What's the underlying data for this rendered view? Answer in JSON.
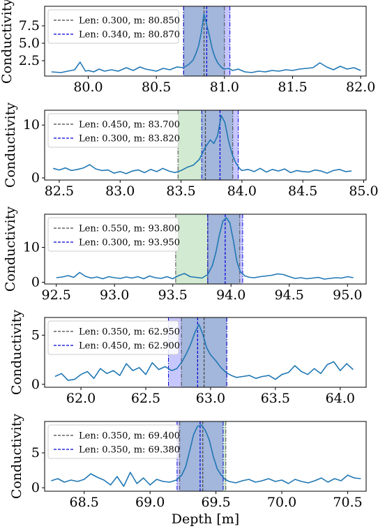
{
  "figure": {
    "xlabel": "Depth [m]"
  },
  "chart_data": [
    {
      "type": "line",
      "ylabel": "Conductivity",
      "xlim": [
        79.68,
        82.04
      ],
      "ylim": [
        0.3,
        10.3
      ],
      "xticks": [
        "80.0",
        "80.5",
        "81.0",
        "81.5",
        "82.0"
      ],
      "yticks": [
        "2.5",
        "5.0",
        "7.5"
      ],
      "legend_position": "upper-left",
      "windows": [
        {
          "label": "Len: 0.300, m:  80.850",
          "color": "#2ca02c",
          "line_color": "#444444",
          "center": 80.85,
          "length": 0.3
        },
        {
          "label": "Len: 0.340, m:  80.870",
          "color": "#0000ff",
          "line_color": "#0000dd",
          "center": 80.87,
          "length": 0.34
        }
      ],
      "series": [
        {
          "x": [
            79.73,
            79.8,
            79.85,
            79.9,
            79.94,
            79.98,
            80.0,
            80.04,
            80.08,
            80.12,
            80.17,
            80.22,
            80.28,
            80.33,
            80.38,
            80.42,
            80.45,
            80.5,
            80.55,
            80.6,
            80.65,
            80.7,
            80.74,
            80.77,
            80.79,
            80.81,
            80.83,
            80.85,
            80.87,
            80.89,
            80.91,
            80.93,
            80.95,
            80.98,
            81.0,
            81.03,
            81.06,
            81.1,
            81.15,
            81.2,
            81.25,
            81.3,
            81.35,
            81.4,
            81.45,
            81.5,
            81.55,
            81.6,
            81.65,
            81.7,
            81.75,
            81.8,
            81.85,
            81.9,
            81.95,
            82.0
          ],
          "y": [
            0.9,
            0.8,
            1.0,
            1.2,
            2.3,
            1.0,
            1.1,
            0.9,
            1.3,
            1.0,
            1.2,
            1.0,
            1.5,
            1.1,
            1.6,
            1.3,
            1.2,
            1.0,
            1.4,
            1.2,
            1.6,
            1.5,
            2.0,
            2.6,
            3.5,
            4.6,
            6.5,
            9.2,
            7.6,
            6.0,
            4.2,
            3.0,
            2.2,
            1.5,
            1.3,
            1.4,
            1.1,
            1.3,
            0.9,
            0.8,
            1.0,
            0.9,
            1.1,
            1.0,
            1.2,
            1.1,
            1.3,
            1.4,
            1.5,
            2.2,
            1.6,
            1.2,
            1.7,
            1.3,
            1.5,
            1.1
          ]
        }
      ]
    },
    {
      "type": "line",
      "ylabel": "Conductivity",
      "xlim": [
        82.38,
        85.02
      ],
      "ylim": [
        -0.4,
        12.8
      ],
      "xticks": [
        "82.5",
        "83.0",
        "83.5",
        "84.0",
        "84.5",
        "85.0"
      ],
      "yticks": [
        "0",
        "10"
      ],
      "legend_position": "upper-left",
      "windows": [
        {
          "label": "Len: 0.450, m:  83.700",
          "color": "#2ca02c",
          "line_color": "#444444",
          "center": 83.7,
          "length": 0.45
        },
        {
          "label": "Len: 0.300, m:  83.820",
          "color": "#0000ff",
          "line_color": "#0000dd",
          "center": 83.82,
          "length": 0.3
        }
      ],
      "series": [
        {
          "x": [
            82.45,
            82.5,
            82.55,
            82.6,
            82.65,
            82.7,
            82.75,
            82.8,
            82.85,
            82.9,
            82.95,
            83.0,
            83.05,
            83.1,
            83.15,
            83.2,
            83.25,
            83.3,
            83.35,
            83.4,
            83.45,
            83.5,
            83.55,
            83.6,
            83.65,
            83.7,
            83.74,
            83.77,
            83.8,
            83.83,
            83.86,
            83.89,
            83.92,
            83.95,
            83.98,
            84.0,
            84.05,
            84.1,
            84.15,
            84.2,
            84.25,
            84.3,
            84.35,
            84.4,
            84.45,
            84.5,
            84.55,
            84.6,
            84.65,
            84.7,
            84.75,
            84.8,
            84.85,
            84.9
          ],
          "y": [
            1.8,
            1.5,
            1.9,
            1.4,
            1.6,
            1.9,
            2.5,
            1.7,
            1.4,
            1.5,
            0.9,
            1.2,
            0.8,
            1.3,
            1.5,
            1.0,
            1.6,
            1.2,
            1.8,
            1.3,
            1.0,
            1.4,
            2.0,
            2.4,
            3.5,
            5.8,
            7.2,
            6.5,
            8.0,
            11.8,
            10.5,
            7.0,
            4.5,
            2.8,
            1.8,
            1.4,
            1.6,
            1.2,
            1.8,
            1.1,
            1.6,
            1.3,
            1.7,
            1.0,
            1.4,
            1.2,
            1.1,
            1.5,
            1.3,
            0.9,
            1.4,
            1.6,
            1.2,
            1.3
          ]
        }
      ]
    },
    {
      "type": "line",
      "ylabel": "Conductivity",
      "xlim": [
        92.4,
        95.16
      ],
      "ylim": [
        -0.5,
        19.5
      ],
      "xticks": [
        "92.5",
        "93.0",
        "93.5",
        "94.0",
        "94.5",
        "95.0"
      ],
      "yticks": [
        "0",
        "10"
      ],
      "legend_position": "upper-left",
      "windows": [
        {
          "label": "Len: 0.550, m:  93.800",
          "color": "#2ca02c",
          "line_color": "#444444",
          "center": 93.8,
          "length": 0.55
        },
        {
          "label": "Len: 0.300, m:  93.950",
          "color": "#0000ff",
          "line_color": "#0000dd",
          "center": 93.95,
          "length": 0.3
        }
      ],
      "series": [
        {
          "x": [
            92.5,
            92.55,
            92.6,
            92.65,
            92.7,
            92.75,
            92.8,
            92.85,
            92.9,
            92.95,
            93.0,
            93.05,
            93.1,
            93.15,
            93.2,
            93.25,
            93.3,
            93.35,
            93.4,
            93.45,
            93.5,
            93.55,
            93.6,
            93.65,
            93.7,
            93.75,
            93.8,
            93.84,
            93.87,
            93.9,
            93.93,
            93.96,
            93.99,
            94.02,
            94.05,
            94.08,
            94.12,
            94.16,
            94.2,
            94.25,
            94.3,
            94.35,
            94.4,
            94.45,
            94.5,
            94.55,
            94.6,
            94.65,
            94.7,
            94.75,
            94.8,
            94.85,
            94.9,
            94.95,
            95.0,
            95.05
          ],
          "y": [
            1.3,
            1.5,
            1.9,
            1.4,
            2.8,
            1.7,
            1.2,
            1.5,
            1.0,
            1.6,
            1.3,
            1.1,
            1.5,
            1.2,
            1.6,
            1.0,
            1.8,
            1.3,
            1.1,
            1.6,
            1.0,
            1.9,
            2.5,
            1.6,
            1.4,
            1.2,
            2.2,
            4.8,
            8.5,
            13.5,
            17.5,
            18.5,
            17.0,
            12.0,
            6.0,
            3.0,
            1.8,
            1.4,
            1.3,
            1.6,
            1.8,
            2.0,
            2.4,
            2.2,
            1.6,
            1.1,
            1.3,
            1.0,
            1.2,
            1.4,
            0.9,
            1.1,
            1.3,
            1.2,
            1.6,
            1.3
          ]
        }
      ]
    },
    {
      "type": "line",
      "ylabel": "Conductivity",
      "xlim": [
        61.72,
        64.2
      ],
      "ylim": [
        -0.3,
        6.8
      ],
      "xticks": [
        "62.0",
        "62.5",
        "63.0",
        "63.5",
        "64.0"
      ],
      "yticks": [
        "0",
        "5"
      ],
      "legend_position": "upper-left",
      "windows": [
        {
          "label": "Len: 0.350, m:  62.950",
          "color": "#2ca02c",
          "line_color": "#444444",
          "center": 62.95,
          "length": 0.35
        },
        {
          "label": "Len: 0.450, m:  62.900",
          "color": "#0000ff",
          "line_color": "#0000dd",
          "center": 62.9,
          "length": 0.45
        }
      ],
      "series": [
        {
          "x": [
            61.8,
            61.85,
            61.9,
            61.95,
            62.0,
            62.05,
            62.1,
            62.15,
            62.2,
            62.25,
            62.3,
            62.35,
            62.4,
            62.45,
            62.5,
            62.55,
            62.6,
            62.65,
            62.7,
            62.74,
            62.78,
            62.82,
            62.85,
            62.88,
            62.91,
            62.94,
            62.97,
            63.0,
            63.04,
            63.08,
            63.12,
            63.16,
            63.2,
            63.25,
            63.3,
            63.35,
            63.4,
            63.45,
            63.5,
            63.55,
            63.6,
            63.65,
            63.7,
            63.75,
            63.8,
            63.85,
            63.9,
            63.95,
            64.0,
            64.05,
            64.1
          ],
          "y": [
            0.8,
            1.1,
            0.4,
            0.5,
            1.0,
            1.3,
            0.6,
            1.6,
            1.1,
            1.4,
            0.9,
            2.1,
            1.4,
            1.7,
            1.0,
            2.2,
            1.5,
            1.8,
            1.4,
            1.6,
            2.3,
            3.3,
            4.2,
            5.3,
            6.1,
            5.1,
            3.7,
            3.0,
            2.4,
            1.7,
            1.2,
            0.9,
            0.7,
            0.8,
            0.9,
            0.6,
            0.8,
            0.9,
            0.5,
            1.0,
            1.2,
            1.9,
            1.3,
            1.0,
            1.6,
            1.1,
            2.0,
            2.3,
            1.4,
            2.1,
            1.5
          ]
        }
      ]
    },
    {
      "type": "line",
      "ylabel": "Conductivity",
      "xlim": [
        68.2,
        70.64
      ],
      "ylim": [
        -0.5,
        9.5
      ],
      "xticks": [
        "68.5",
        "69.0",
        "69.5",
        "70.0",
        "70.5"
      ],
      "yticks": [
        "0",
        "5"
      ],
      "legend_position": "upper-left",
      "windows": [
        {
          "label": "Len: 0.350, m:  69.400",
          "color": "#2ca02c",
          "line_color": "#444444",
          "center": 69.4,
          "length": 0.35
        },
        {
          "label": "Len: 0.350, m:  69.380",
          "color": "#0000ff",
          "line_color": "#0000dd",
          "center": 69.38,
          "length": 0.35
        }
      ],
      "series": [
        {
          "x": [
            68.25,
            68.3,
            68.35,
            68.4,
            68.45,
            68.5,
            68.55,
            68.6,
            68.65,
            68.7,
            68.75,
            68.8,
            68.85,
            68.9,
            68.95,
            69.0,
            69.05,
            69.1,
            69.15,
            69.2,
            69.24,
            69.27,
            69.3,
            69.33,
            69.36,
            69.39,
            69.42,
            69.45,
            69.48,
            69.51,
            69.54,
            69.57,
            69.6,
            69.65,
            69.7,
            69.75,
            69.8,
            69.85,
            69.9,
            69.95,
            70.0,
            70.05,
            70.1,
            70.15,
            70.2,
            70.25,
            70.3,
            70.35,
            70.4,
            70.45,
            70.5,
            70.55,
            70.6
          ],
          "y": [
            1.0,
            1.3,
            0.8,
            1.1,
            0.9,
            1.2,
            2.0,
            1.5,
            1.1,
            0.4,
            1.6,
            0.2,
            2.2,
            0.6,
            1.4,
            0.4,
            1.2,
            0.9,
            0.8,
            1.1,
            1.8,
            3.0,
            5.2,
            7.6,
            8.8,
            9.0,
            8.2,
            6.8,
            4.5,
            2.7,
            1.8,
            1.2,
            0.9,
            0.7,
            1.0,
            1.2,
            0.8,
            1.0,
            1.3,
            0.9,
            1.1,
            0.6,
            1.2,
            0.9,
            0.7,
            1.0,
            1.4,
            0.8,
            1.3,
            1.0,
            1.8,
            1.4,
            1.3
          ]
        }
      ]
    }
  ]
}
